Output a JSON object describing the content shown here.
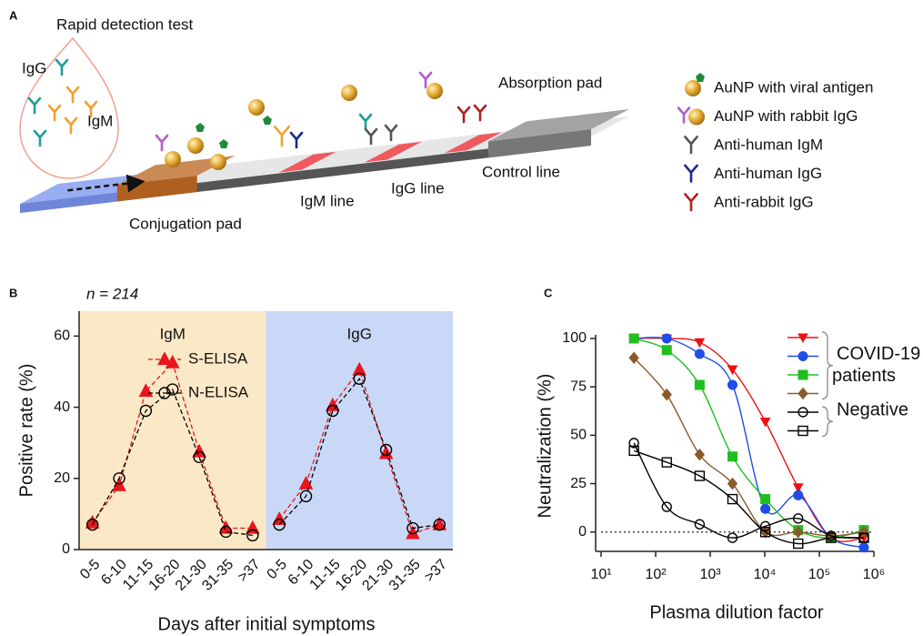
{
  "diagram": {
    "letter": "A",
    "title": "Rapid detection test",
    "sample_labels": [
      "IgG",
      "IgM"
    ],
    "pads": {
      "absorption": "Absorption pad",
      "conjugation": "Conjugation pad"
    },
    "lines": [
      "IgM line",
      "IgG line",
      "Control line"
    ],
    "legend": [
      "AuNP with viral antigen",
      "AuNP with rabbit IgG",
      "Anti-human IgM",
      "Anti-human IgG",
      "Anti-rabbit IgG"
    ]
  },
  "chart_data": [
    {
      "type": "line",
      "letter": "B",
      "annotation": "n = 214",
      "xlabel": "Days after initial symptoms",
      "ylabel": "Positive rate (%)",
      "categories": [
        "0-5",
        "6-10",
        "11-15",
        "16-20",
        "21-30",
        "31-35",
        ">37",
        "0-5",
        "6-10",
        "11-15",
        "16-20",
        "21-30",
        "31-35",
        ">37"
      ],
      "groups": [
        {
          "label": "IgM",
          "background": "#fbe8c6"
        },
        {
          "label": "IgG",
          "background": "#c9d8f6"
        }
      ],
      "series": [
        {
          "name": "S-ELISA",
          "color": "#e8141e",
          "marker": "triangle",
          "values": [
            7.5,
            18,
            44.5,
            52.5,
            27.5,
            6,
            6,
            8.5,
            18.5,
            40.5,
            50.5,
            27,
            4.5,
            7
          ]
        },
        {
          "name": "N-ELISA",
          "color": "#000000",
          "marker": "open-circle",
          "values": [
            7,
            20,
            39,
            45,
            26,
            5,
            4,
            7,
            15,
            39,
            48,
            28,
            6,
            7
          ]
        }
      ],
      "ylim": [
        0,
        67
      ],
      "yticks": [
        0,
        20,
        40,
        60
      ]
    },
    {
      "type": "scatter",
      "letter": "C",
      "xlabel": "Plasma dilution factor",
      "ylabel": "Neutralization (%)",
      "x": [
        40,
        160,
        640,
        2560,
        10240,
        40960,
        163840,
        655360
      ],
      "log_x": true,
      "xlim": [
        10,
        1000000
      ],
      "xticks": [
        {
          "value": 10,
          "label": "10¹"
        },
        {
          "value": 100,
          "label": "10²"
        },
        {
          "value": 1000,
          "label": "10³"
        },
        {
          "value": 10000,
          "label": "10⁴"
        },
        {
          "value": 100000,
          "label": "10⁵"
        },
        {
          "value": 1000000,
          "label": "10⁶"
        }
      ],
      "ylim": [
        -10,
        100
      ],
      "yticks": [
        0,
        25,
        50,
        75,
        100
      ],
      "reference_line": 0,
      "groups": [
        {
          "label": [
            "COVID-19",
            "patients"
          ],
          "series": [
            {
              "color": "#ee1111",
              "marker": "triangle-down",
              "values": [
                100,
                100,
                98,
                84,
                57,
                23,
                -3,
                -3
              ]
            },
            {
              "color": "#1f4de8",
              "marker": "circle",
              "values": [
                100,
                100,
                92,
                76,
                12,
                19,
                -3,
                -8
              ]
            },
            {
              "color": "#1fbf1f",
              "marker": "square",
              "values": [
                100,
                94,
                76,
                39,
                17,
                1,
                -3,
                1
              ]
            },
            {
              "color": "#8b5a2b",
              "marker": "diamond",
              "values": [
                90,
                71,
                40,
                25,
                0,
                0,
                -2,
                0
              ]
            }
          ]
        },
        {
          "label": [
            "Negative"
          ],
          "series": [
            {
              "color": "#000000",
              "marker": "open-circle",
              "values": [
                46,
                13,
                4,
                -3,
                3,
                7,
                -2,
                -3
              ]
            },
            {
              "color": "#000000",
              "marker": "open-square",
              "values": [
                42,
                36,
                29,
                17,
                0,
                -6,
                -3,
                -3
              ]
            }
          ]
        }
      ]
    }
  ]
}
